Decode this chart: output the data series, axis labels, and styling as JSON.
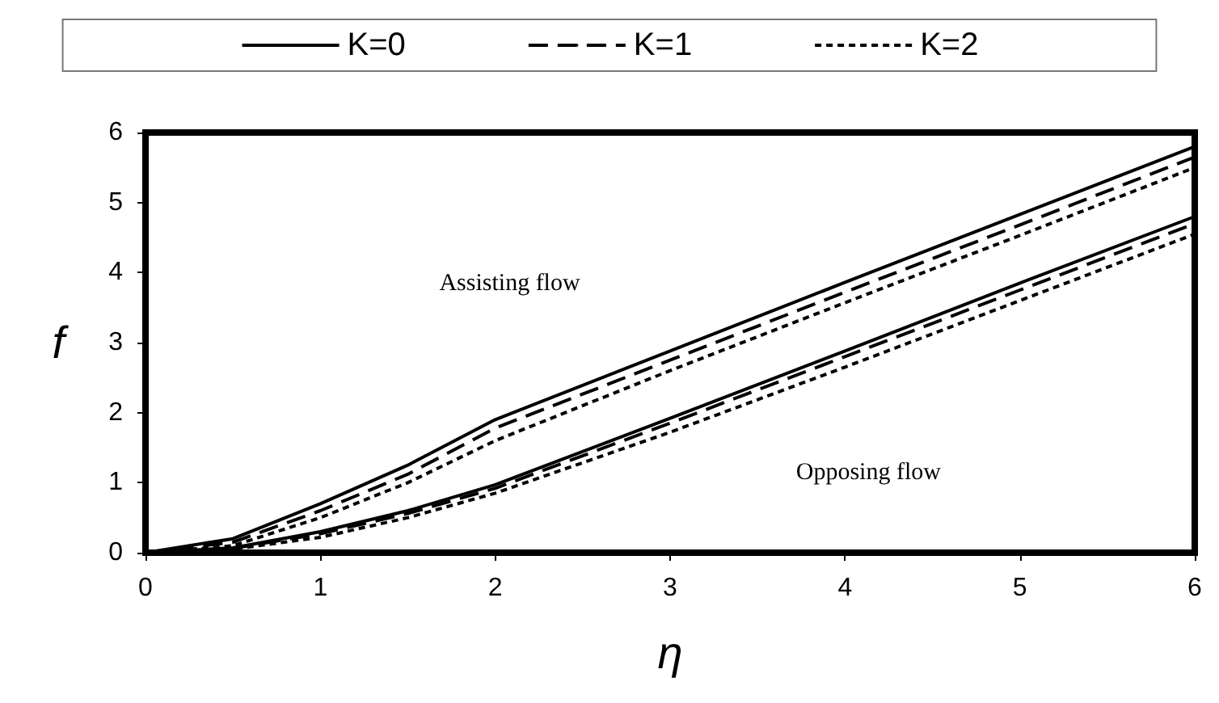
{
  "chart_data": {
    "type": "line",
    "xlabel": "η",
    "ylabel": "f",
    "x": [
      0,
      0.5,
      1,
      1.5,
      2,
      3,
      4,
      5,
      6
    ],
    "xlim": [
      0,
      6
    ],
    "xticks": [
      0,
      1,
      2,
      3,
      4,
      5,
      6
    ],
    "ylim": [
      0,
      6
    ],
    "yticks": [
      0,
      1,
      2,
      3,
      4,
      5,
      6
    ],
    "grid": false,
    "legend": "top",
    "marker": "none",
    "series": [
      {
        "name": "K=0",
        "color": "#000000",
        "line_style": "solid",
        "values": [
          0,
          0.2,
          0.7,
          1.25,
          1.9,
          2.88,
          3.86,
          4.83,
          5.8
        ]
      },
      {
        "name": "K=1",
        "color": "#000000",
        "line_style": "dashed",
        "values": [
          0,
          0.15,
          0.6,
          1.12,
          1.78,
          2.75,
          3.72,
          4.68,
          5.65
        ]
      },
      {
        "name": "K=2",
        "color": "#000000",
        "line_style": "dotted",
        "values": [
          0,
          0.1,
          0.5,
          1.0,
          1.6,
          2.6,
          3.57,
          4.53,
          5.5
        ]
      },
      {
        "color": "#000000",
        "line_style": "solid",
        "values": [
          0,
          0.07,
          0.3,
          0.6,
          0.97,
          1.92,
          2.88,
          3.85,
          4.8
        ]
      },
      {
        "color": "#000000",
        "line_style": "dashed",
        "values": [
          0,
          0.06,
          0.27,
          0.56,
          0.92,
          1.85,
          2.8,
          3.75,
          4.7
        ]
      },
      {
        "color": "#000000",
        "line_style": "dotted",
        "values": [
          0,
          0.05,
          0.22,
          0.5,
          0.85,
          1.72,
          2.65,
          3.6,
          4.55
        ]
      }
    ],
    "annotations": [
      "Assisting flow",
      "Opposing flow"
    ]
  }
}
